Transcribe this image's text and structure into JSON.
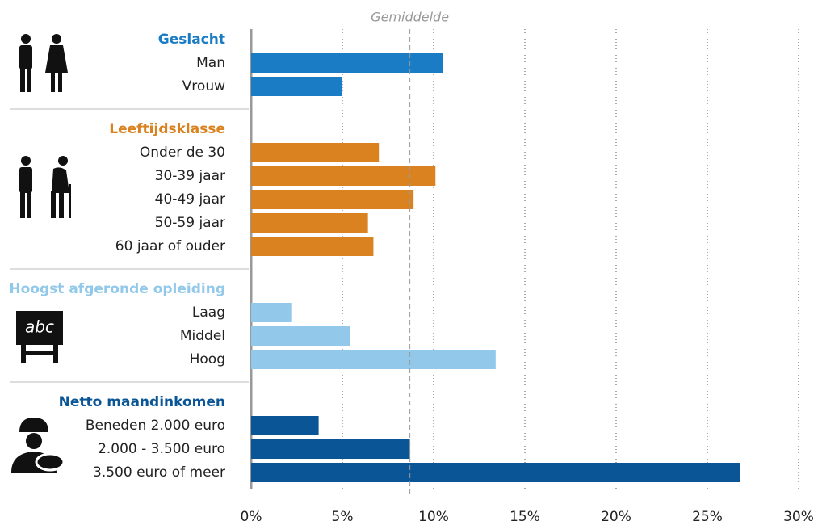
{
  "chart_data": {
    "type": "bar",
    "orientation": "horizontal",
    "groups": [
      {
        "name": "Geslacht",
        "color": "#1a7cc4",
        "categories": [
          "Man",
          "Vrouw"
        ],
        "values": [
          10.5,
          5.0
        ]
      },
      {
        "name": "Leeftijdsklasse",
        "color": "#d9821f",
        "categories": [
          "Onder de 30",
          "30-39 jaar",
          "40-49 jaar",
          "50-59 jaar",
          "60 jaar of ouder"
        ],
        "values": [
          7.0,
          10.1,
          8.9,
          6.4,
          6.7
        ]
      },
      {
        "name": "Hoogst afgeronde opleiding",
        "color": "#92c9ea",
        "categories": [
          "Laag",
          "Middel",
          "Hoog"
        ],
        "values": [
          2.2,
          5.4,
          13.4
        ]
      },
      {
        "name": "Netto maandinkomen",
        "color": "#0a5595",
        "categories": [
          "Beneden 2.000 euro",
          "2.000 - 3.500 euro",
          "3.500 euro of meer"
        ],
        "values": [
          3.7,
          8.7,
          26.8
        ]
      }
    ],
    "reference": {
      "label": "Gemiddelde",
      "value": 8.7
    },
    "xlim": [
      0,
      30
    ],
    "xticks": [
      {
        "value": 0,
        "label": "0%"
      },
      {
        "value": 5,
        "label": "5%"
      },
      {
        "value": 10,
        "label": "10%"
      },
      {
        "value": 15,
        "label": "15%"
      },
      {
        "value": 20,
        "label": "20%"
      },
      {
        "value": 25,
        "label": "25%"
      },
      {
        "value": 30,
        "label": "30%"
      }
    ],
    "grid": true
  }
}
